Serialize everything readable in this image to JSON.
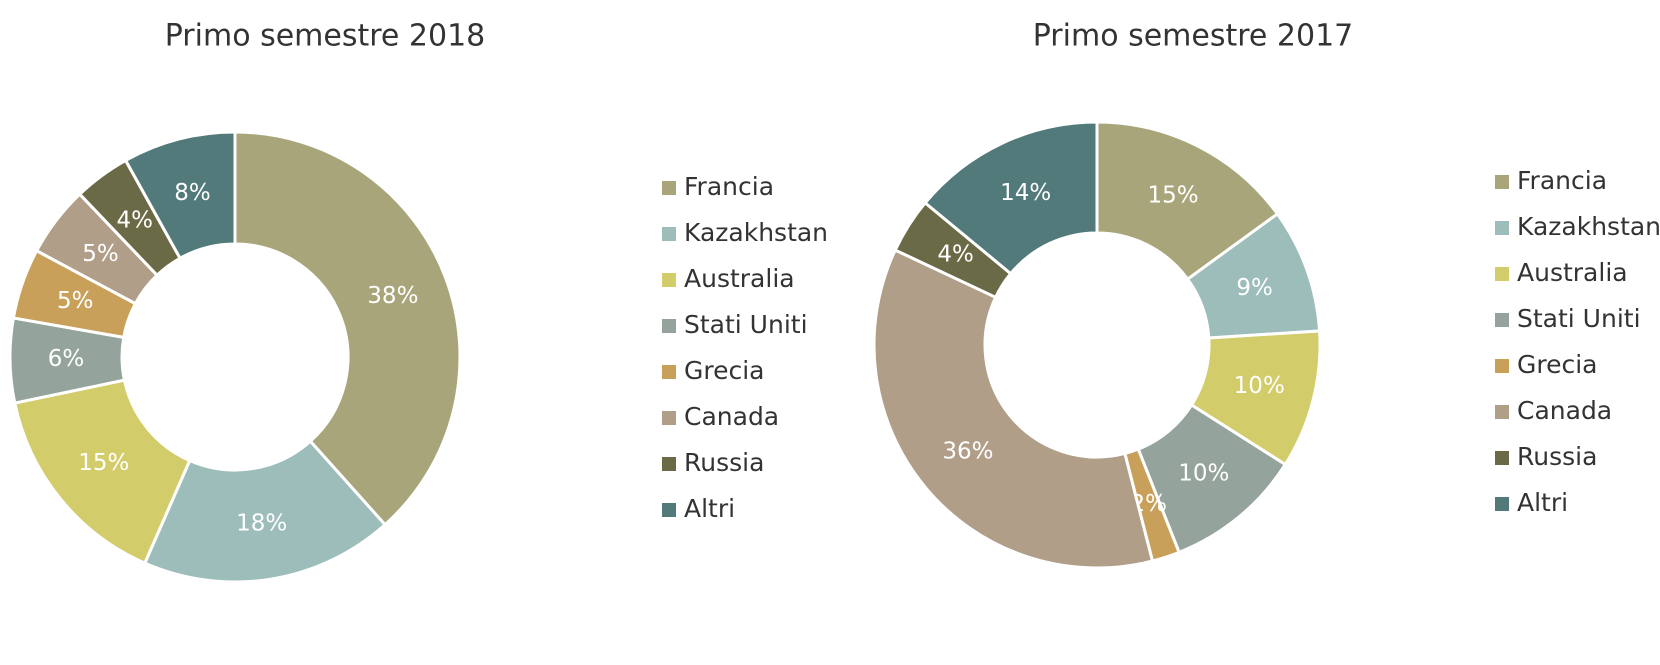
{
  "chart_data": [
    {
      "type": "donut",
      "title": "Primo semestre 2018",
      "categories": [
        "Francia",
        "Kazakhstan",
        "Australia",
        "Stati Uniti",
        "Grecia",
        "Canada",
        "Russia",
        "Altri"
      ],
      "values": [
        38,
        18,
        15,
        6,
        5,
        5,
        4,
        8
      ],
      "value_labels": [
        "38%",
        "18%",
        "15%",
        "6%",
        "5%",
        "5%",
        "4%",
        "8%"
      ],
      "colors": [
        "#a8a57a",
        "#9dbdbb",
        "#d3cc6a",
        "#94a39b",
        "#c9a05a",
        "#b09e88",
        "#6b6a46",
        "#527a7a"
      ],
      "legend": "right"
    },
    {
      "type": "donut",
      "title": "Primo semestre 2017",
      "categories": [
        "Francia",
        "Kazakhstan",
        "Australia",
        "Stati Uniti",
        "Grecia",
        "Canada",
        "Russia",
        "Altri"
      ],
      "values": [
        15,
        9,
        10,
        10,
        2,
        36,
        4,
        14
      ],
      "value_labels": [
        "15%",
        "9%",
        "10%",
        "10%",
        "2%",
        "36%",
        "4%",
        "14%"
      ],
      "colors": [
        "#a8a57a",
        "#9dbdbb",
        "#d3cc6a",
        "#94a39b",
        "#c9a05a",
        "#b09e88",
        "#6b6a46",
        "#527a7a"
      ],
      "legend": "right"
    }
  ]
}
